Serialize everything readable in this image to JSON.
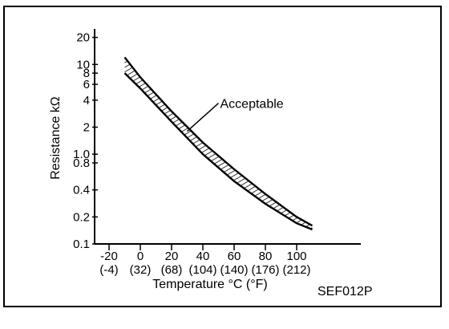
{
  "chart_data": {
    "type": "area",
    "xlabel": "Temperature °C (°F)",
    "ylabel": "Resistance kΩ",
    "y_scale": "log",
    "xlim": [
      -29,
      150
    ],
    "ylim": [
      0.1,
      22
    ],
    "grid": false,
    "x_ticks": [
      {
        "value": -20,
        "label": "-20",
        "sub": "(-4)"
      },
      {
        "value": 0,
        "label": "0",
        "sub": "(32)"
      },
      {
        "value": 20,
        "label": "20",
        "sub": "(68)"
      },
      {
        "value": 40,
        "label": "40",
        "sub": "(104)"
      },
      {
        "value": 60,
        "label": "60",
        "sub": "(140)"
      },
      {
        "value": 80,
        "label": "80",
        "sub": "(176)"
      },
      {
        "value": 100,
        "label": "100",
        "sub": "(212)"
      }
    ],
    "y_ticks": [
      {
        "value": 20,
        "label": "20"
      },
      {
        "value": 10,
        "label": "10"
      },
      {
        "value": 8,
        "label": "8"
      },
      {
        "value": 6,
        "label": "6"
      },
      {
        "value": 4,
        "label": "4"
      },
      {
        "value": 2,
        "label": "2"
      },
      {
        "value": 1.0,
        "label": "1.0"
      },
      {
        "value": 0.8,
        "label": "0.8"
      },
      {
        "value": 0.4,
        "label": "0.4"
      },
      {
        "value": 0.2,
        "label": "0.2"
      },
      {
        "value": 0.1,
        "label": "0.1"
      }
    ],
    "series": [
      {
        "x": [
          -10,
          0,
          20,
          40,
          60,
          80,
          100,
          110
        ],
        "y_upper": [
          12,
          7.2,
          3.0,
          1.35,
          0.68,
          0.36,
          0.2,
          0.16
        ],
        "y_lower": [
          8.0,
          5.4,
          2.3,
          1.0,
          0.5,
          0.28,
          0.17,
          0.145
        ]
      }
    ],
    "annotation": {
      "text": "Acceptable",
      "x": 30,
      "y": 1.8
    }
  },
  "figure_id": "SEF012P"
}
